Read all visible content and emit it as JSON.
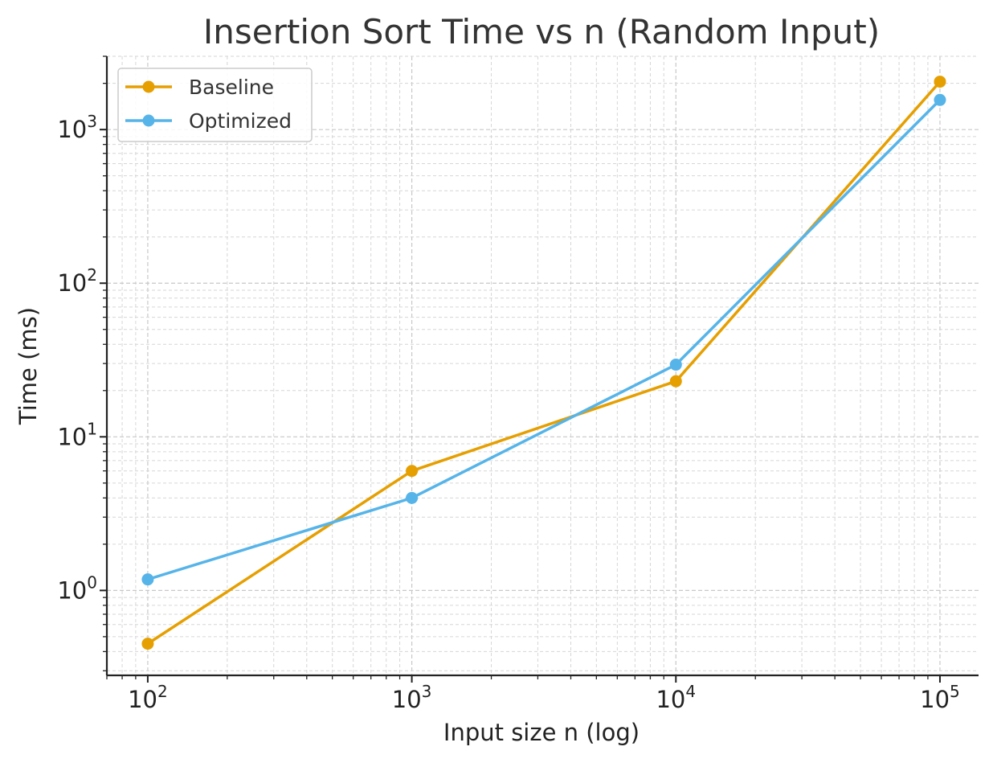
{
  "chart_data": {
    "type": "line",
    "title": "Insertion Sort Time vs n (Random Input)",
    "xlabel": "Input size n (log)",
    "ylabel": "Time (ms)",
    "x_scale": "log",
    "y_scale": "log",
    "xlim": [
      70,
      140000
    ],
    "ylim": [
      0.28,
      3000
    ],
    "x": [
      100,
      1000,
      10000,
      100000
    ],
    "x_ticks": [
      {
        "base": "10",
        "exp": "2",
        "value": 100
      },
      {
        "base": "10",
        "exp": "3",
        "value": 1000
      },
      {
        "base": "10",
        "exp": "4",
        "value": 10000
      },
      {
        "base": "10",
        "exp": "5",
        "value": 100000
      }
    ],
    "y_ticks": [
      {
        "base": "10",
        "exp": "0",
        "value": 1
      },
      {
        "base": "10",
        "exp": "1",
        "value": 10
      },
      {
        "base": "10",
        "exp": "2",
        "value": 100
      },
      {
        "base": "10",
        "exp": "3",
        "value": 1000
      }
    ],
    "grid": true,
    "legend_position": "top-left",
    "series": [
      {
        "name": "Baseline",
        "color": "#E69F00",
        "values": [
          0.45,
          6.0,
          23.0,
          2050.0
        ]
      },
      {
        "name": "Optimized",
        "color": "#56B4E9",
        "values": [
          1.18,
          4.0,
          29.5,
          1560.0
        ]
      }
    ]
  }
}
